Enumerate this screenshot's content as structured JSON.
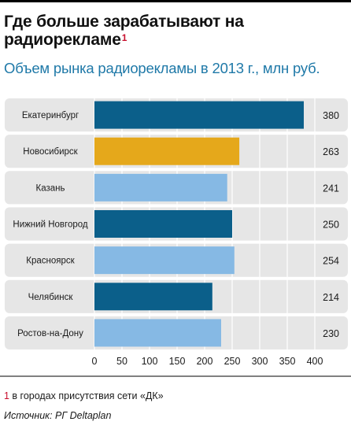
{
  "header": {
    "title": "Где больше зарабатывают на радиорекламе",
    "title_note": "1",
    "subtitle": "Объем рынка радиорекламы в 2013 г., млн руб."
  },
  "footnote": {
    "mark": "1",
    "text": " в городах присутствия сети «ДК»"
  },
  "source": {
    "text": "Источник: РГ Deltaplan"
  },
  "colors": {
    "dark_blue": "#0b5f8a",
    "orange": "#e5a81b",
    "light_blue": "#86b9e4",
    "row_bg": "#e6e6e6",
    "accent_red": "#c8102e"
  },
  "chart_data": {
    "type": "bar",
    "orientation": "horizontal",
    "categories": [
      "Екатеринбург",
      "Новосибирск",
      "Казань",
      "Нижний Новгород",
      "Красноярск",
      "Челябинск",
      "Ростов-на-Дону"
    ],
    "values": [
      380,
      263,
      241,
      250,
      254,
      214,
      230
    ],
    "bar_colors": [
      "#0b5f8a",
      "#e5a81b",
      "#86b9e4",
      "#0b5f8a",
      "#86b9e4",
      "#0b5f8a",
      "#86b9e4"
    ],
    "xlim": [
      0,
      400
    ],
    "xticks": [
      0,
      50,
      100,
      150,
      200,
      250,
      300,
      350,
      400
    ],
    "title": "Объем рынка радиорекламы в 2013 г., млн руб.",
    "xlabel": "",
    "ylabel": "",
    "grid": true
  }
}
